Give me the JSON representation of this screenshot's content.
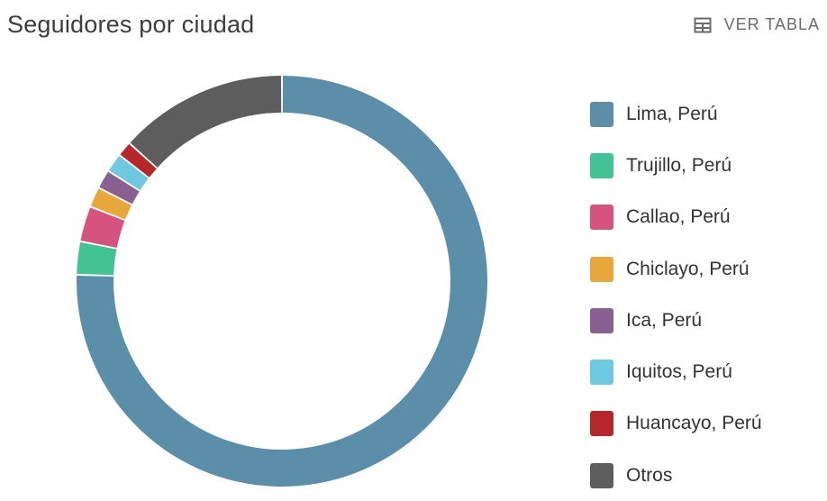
{
  "header": {
    "title": "Seguidores por ciudad",
    "table_button_label": "VER TABLA",
    "table_button_icon": "table-icon"
  },
  "chart_data": {
    "type": "pie",
    "style": "donut",
    "categories": [
      "Lima, Perú",
      "Trujillo, Perú",
      "Callao, Perú",
      "Chiclayo, Perú",
      "Ica, Perú",
      "Iquitos, Perú",
      "Huancayo, Perú",
      "Otros"
    ],
    "values": [
      75.5,
      2.6,
      2.8,
      1.6,
      1.5,
      1.5,
      1.2,
      13.3
    ],
    "colors": [
      "#5b8ea8",
      "#41c396",
      "#d6527f",
      "#e7a73a",
      "#8a5f92",
      "#6cc9df",
      "#b52728",
      "#5d5d5d"
    ],
    "legend_position": "right",
    "start_angle_deg": 0,
    "direction": "clockwise"
  }
}
